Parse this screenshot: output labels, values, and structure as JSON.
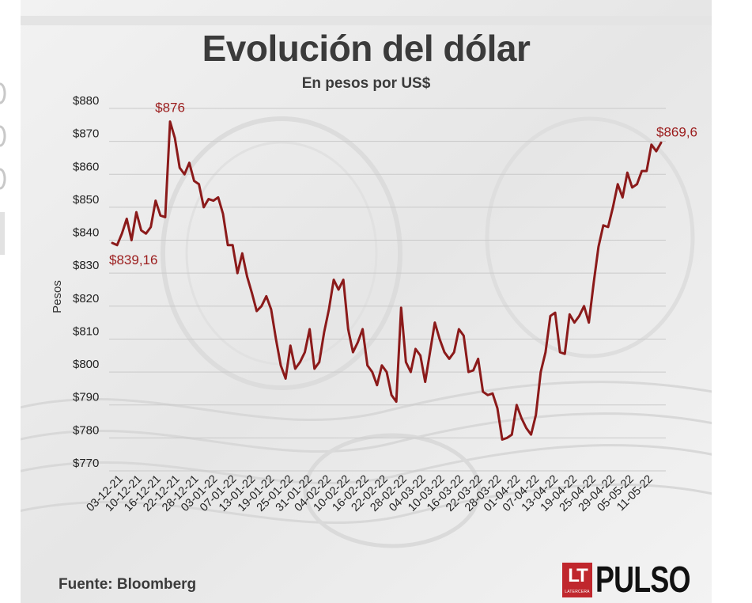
{
  "header": {
    "title": "Evolución del dólar",
    "subtitle": "En pesos por US$"
  },
  "footer": {
    "source": "Fuente: Bloomberg"
  },
  "logo": {
    "box_text": "LT",
    "box_subtext": "LATERCERA",
    "wordmark": "PULSO",
    "color": "#c0272d"
  },
  "chart_data": {
    "type": "line",
    "title": "Evolución del dólar",
    "subtitle": "En pesos por US$",
    "ylabel": "Pesos",
    "xlabel": "",
    "ylim": [
      770,
      880
    ],
    "yticks": [
      770,
      780,
      790,
      800,
      810,
      820,
      830,
      840,
      850,
      860,
      870,
      880
    ],
    "ytick_labels": [
      "$770",
      "$780",
      "$790",
      "$800",
      "$810",
      "$820",
      "$830",
      "$840",
      "$850",
      "$860",
      "$870",
      "$880"
    ],
    "grid": true,
    "line_color": "#8b1a1a",
    "x_tick_labels": [
      "03-12-21",
      "10-12-21",
      "16-12-21",
      "22-12-21",
      "28-12-21",
      "03-01-22",
      "07-01-22",
      "13-01-22",
      "19-01-22",
      "25-01-22",
      "31-01-22",
      "04-02-22",
      "10-02-22",
      "16-02-22",
      "22-02-22",
      "28-02-22",
      "04-03-22",
      "10-03-22",
      "16-03-22",
      "22-03-22",
      "28-03-22",
      "01-04-22",
      "07-04-22",
      "13-04-22",
      "19-04-22",
      "25-04-22",
      "29-04-22",
      "05-05-22",
      "11-05-22"
    ],
    "values": [
      839.16,
      838.5,
      842,
      846.5,
      840,
      848.5,
      843,
      842,
      844,
      852,
      847.5,
      847,
      876,
      871,
      862,
      860,
      863.5,
      858,
      857,
      850,
      852.5,
      852,
      853,
      848,
      838.5,
      838.5,
      830,
      836,
      829,
      824,
      818.5,
      820,
      823,
      819,
      810,
      802,
      798,
      808,
      801,
      803,
      806,
      813,
      801,
      803,
      812,
      819,
      828,
      825,
      828,
      813,
      806,
      809,
      813,
      802,
      800,
      796,
      802,
      800,
      793,
      791,
      819.5,
      803,
      800,
      807,
      805,
      797,
      806,
      815,
      810,
      806,
      804,
      806,
      813,
      811,
      800,
      800.5,
      804,
      794,
      793,
      793.5,
      789,
      779.5,
      780,
      781,
      790,
      786,
      783,
      781,
      787,
      800,
      806,
      817,
      818,
      806,
      805.5,
      817.5,
      815,
      817,
      820,
      815,
      827,
      838,
      844.5,
      844,
      850,
      857,
      853,
      860.5,
      856,
      857,
      861,
      861,
      869,
      867,
      869.6
    ],
    "annotations": [
      {
        "text": "$876",
        "index": 12,
        "position": "above"
      },
      {
        "text": "$839,16",
        "index": 0,
        "position": "below-right"
      },
      {
        "text": "$869,6",
        "index": 114,
        "position": "above-left"
      }
    ]
  }
}
